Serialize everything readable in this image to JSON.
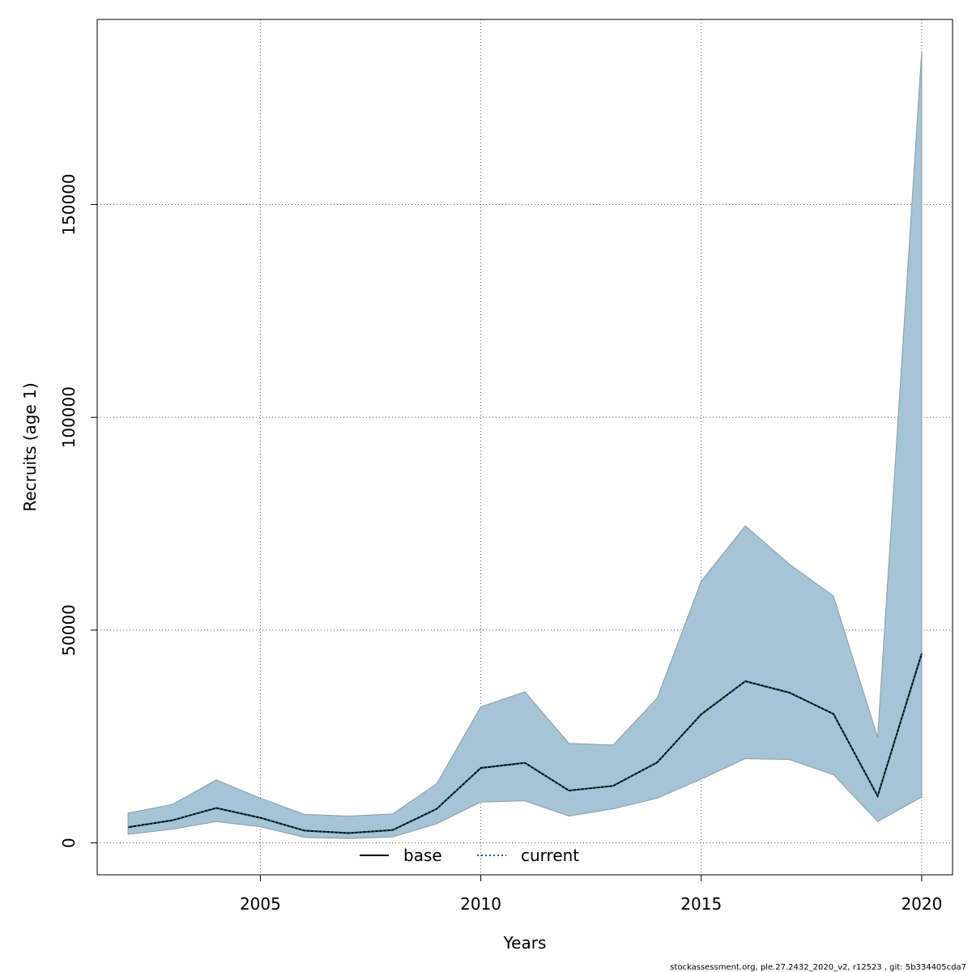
{
  "chart_data": {
    "type": "area",
    "xlabel": "Years",
    "ylabel": "Recruits (age 1)",
    "xlim": [
      2001.3,
      2020.7
    ],
    "ylim": [
      -7500,
      193500
    ],
    "x_ticks": [
      2005,
      2010,
      2015,
      2020
    ],
    "y_ticks": [
      0,
      50000,
      100000,
      150000
    ],
    "grid": true,
    "x": [
      2002,
      2003,
      2004,
      2005,
      2006,
      2007,
      2008,
      2009,
      2010,
      2011,
      2012,
      2013,
      2014,
      2015,
      2016,
      2017,
      2018,
      2019,
      2020
    ],
    "band": {
      "color": "#a5c4d5",
      "upper": [
        7000,
        9000,
        14800,
        10500,
        6700,
        6300,
        6800,
        13900,
        32000,
        35500,
        23400,
        23000,
        34000,
        61500,
        74500,
        65500,
        58000,
        24800,
        186000
      ],
      "lower": [
        2000,
        3200,
        5000,
        3800,
        1300,
        1000,
        1400,
        4500,
        9600,
        9900,
        6300,
        8000,
        10500,
        15000,
        19800,
        19600,
        16000,
        5000,
        10800
      ]
    },
    "series": [
      {
        "name": "base",
        "line_style": "solid",
        "color": "#000000",
        "values": [
          3700,
          5300,
          8200,
          5900,
          2900,
          2300,
          3000,
          8000,
          17600,
          18800,
          12300,
          13400,
          18900,
          30200,
          38000,
          35300,
          30300,
          11000,
          44500
        ]
      },
      {
        "name": "current",
        "line_style": "dotted",
        "color": "#1f5f8b",
        "values": [
          3700,
          5300,
          8200,
          5900,
          2900,
          2300,
          3000,
          8000,
          17600,
          18800,
          12300,
          13400,
          18900,
          30200,
          38000,
          35300,
          30300,
          11000,
          44500
        ]
      }
    ],
    "legend_position": "bottom"
  },
  "footer": "stockassessment.org, ple.27.2432_2020_v2, r12523 , git: 5b334405cda7"
}
